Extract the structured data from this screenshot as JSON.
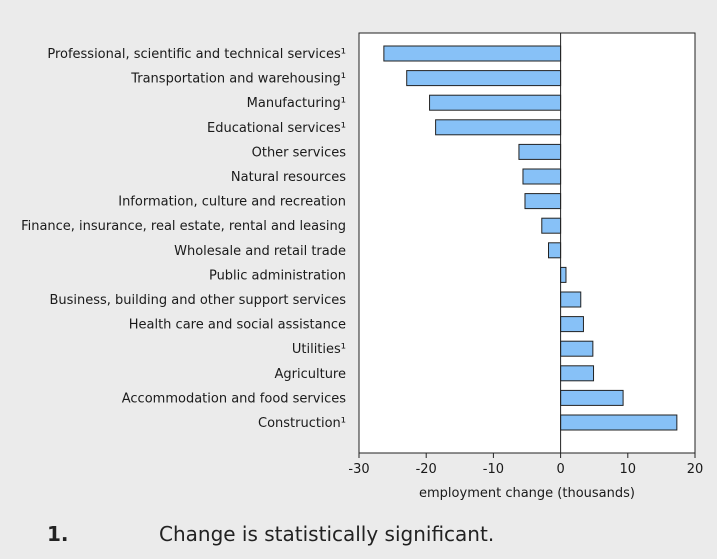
{
  "chart_data": {
    "type": "bar",
    "orientation": "horizontal",
    "categories": [
      "Professional, scientific and technical services¹",
      "Transportation and warehousing¹",
      "Manufacturing¹",
      "Educational services¹",
      "Other services",
      "Natural resources",
      "Information, culture and recreation",
      "Finance, insurance, real estate, rental and leasing",
      "Wholesale and retail trade",
      "Public administration",
      "Business, building and other support services",
      "Health care and social assistance",
      "Utilities¹",
      "Agriculture",
      "Accommodation and food services",
      "Construction¹"
    ],
    "values": [
      -26.3,
      -22.9,
      -19.5,
      -18.6,
      -6.2,
      -5.6,
      -5.3,
      -2.8,
      -1.8,
      0.8,
      3.0,
      3.4,
      4.8,
      4.9,
      9.3,
      17.3
    ],
    "xlabel": "employment change (thousands)",
    "xlim": [
      -30,
      20
    ],
    "xticks": [
      -30,
      -20,
      -10,
      0,
      10,
      20
    ],
    "grid": false,
    "bar_color": "#87c1f7"
  },
  "footnote": {
    "number": "1.",
    "text": "Change is statistically significant."
  }
}
